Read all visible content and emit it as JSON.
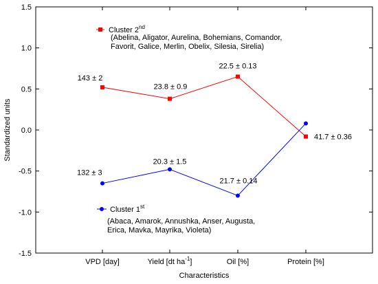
{
  "chart_data": {
    "type": "line",
    "xlabel": "Characteristics",
    "ylabel": "Standardized units",
    "ylim": [
      -1.5,
      1.5
    ],
    "yticks": [
      1.5,
      1.0,
      0.5,
      0.0,
      -0.5,
      -1.0,
      -1.5
    ],
    "ytick_labels": [
      "1.5",
      "1.0",
      "0.5",
      "0.0",
      "-0.5",
      "-1.0",
      "-1.5"
    ],
    "categories": [
      {
        "main": "VPD [day]"
      },
      {
        "main": "Yield [dt ha",
        "sup": "-1",
        "end": "]"
      },
      {
        "main": "Oil [%]"
      },
      {
        "main": "Protein [%]"
      }
    ],
    "grid": false,
    "series": [
      {
        "name_main": "Cluster 2",
        "name_sup": "nd",
        "members_line1": "(Abelina, Aligator, Aurelina, Bohemians, Comandor,",
        "members_line2": "Favorit, Galice, Merlin, Obelix, Silesia, Sirelia)",
        "color": "#ff0000",
        "marker": "square",
        "values": [
          0.52,
          0.38,
          0.65,
          -0.08
        ],
        "labels": [
          "143 ± 2",
          "23.8 ± 0.9",
          "22.5 ± 0.13",
          "41.7 ± 0.36"
        ]
      },
      {
        "name_main": "Cluster 1",
        "name_sup": "st",
        "members_line1": "(Abaca, Amarok, Annushka, Anser, Augusta,",
        "members_line2": "Erica, Mavka, Mayrika, Violeta)",
        "color": "#0000ff",
        "marker": "circle",
        "values": [
          -0.65,
          -0.48,
          -0.8,
          0.08
        ],
        "labels": [
          "132 ± 3",
          "20.3 ± 1.5",
          "21.7 ± 0.14",
          ""
        ]
      }
    ]
  }
}
